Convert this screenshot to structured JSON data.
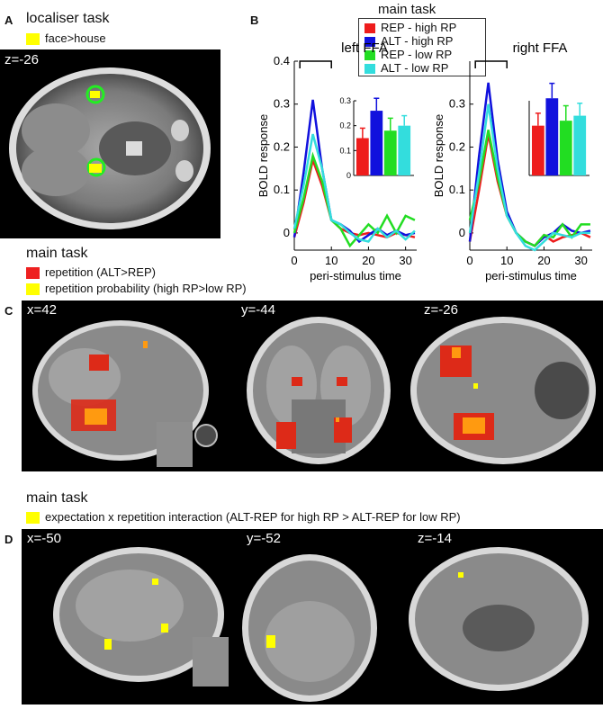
{
  "panelA": {
    "letter": "A",
    "title": "localiser task",
    "legend": [
      {
        "label": "face>house",
        "color": "#ffff00"
      }
    ],
    "coord": "z=-26"
  },
  "panelB": {
    "letter": "B",
    "legend_title": "main task",
    "legend": [
      {
        "label": "REP - high RP",
        "color": "#ee1c1c"
      },
      {
        "label": "ALT - high RP",
        "color": "#1111dd"
      },
      {
        "label": "REP - low RP",
        "color": "#22dd22"
      },
      {
        "label": "ALT - low RP",
        "color": "#33dddd"
      }
    ],
    "ylabel": "BOLD response",
    "xlabel": "peri-stimulus time"
  },
  "panelC": {
    "letter": "C",
    "title": "main task",
    "legend": [
      {
        "label": "repetition (ALT>REP)",
        "color": "#ee2020"
      },
      {
        "label": "repetition probability (high RP>low RP)",
        "color": "#ffff00"
      }
    ],
    "coords": [
      "x=42",
      "y=-44",
      "z=-26"
    ]
  },
  "panelD": {
    "letter": "D",
    "title": "main task",
    "legend": [
      {
        "label": "expectation x repetition interaction  (ALT-REP for high RP > ALT-REP for low RP)",
        "color": "#ffff00"
      }
    ],
    "coords": [
      "x=-50",
      "y=-52",
      "z=-14"
    ]
  },
  "chart_data": [
    {
      "type": "line",
      "title": "left FFA",
      "xlabel": "peri-stimulus time",
      "ylabel": "BOLD response",
      "x": [
        0,
        2.5,
        5,
        7.5,
        10,
        12.5,
        15,
        17.5,
        20,
        22.5,
        25,
        27.5,
        30,
        32.5
      ],
      "xlim": [
        0,
        33
      ],
      "ylim": [
        -0.04,
        0.4
      ],
      "xticks": [
        0,
        10,
        20,
        30
      ],
      "yticks": [
        0,
        0.1,
        0.2,
        0.3,
        0.4
      ],
      "series": [
        {
          "name": "REP - high RP",
          "color": "#ee1c1c",
          "values": [
            -0.01,
            0.07,
            0.17,
            0.11,
            0.03,
            0.01,
            0.0,
            -0.005,
            0.0,
            -0.005,
            -0.01,
            0.0,
            -0.005,
            -0.01
          ]
        },
        {
          "name": "ALT - high RP",
          "color": "#1111dd",
          "values": [
            -0.01,
            0.14,
            0.31,
            0.15,
            0.03,
            0.02,
            0.005,
            -0.02,
            -0.005,
            0.01,
            -0.005,
            0.005,
            -0.005,
            0.0
          ]
        },
        {
          "name": "REP - low RP",
          "color": "#22dd22",
          "values": [
            0.0,
            0.08,
            0.18,
            0.12,
            0.03,
            0.01,
            -0.03,
            -0.005,
            0.02,
            0.0,
            0.04,
            0.0,
            0.04,
            0.03
          ]
        },
        {
          "name": "ALT - low RP",
          "color": "#33dddd",
          "values": [
            0.01,
            0.11,
            0.23,
            0.15,
            0.03,
            0.02,
            0.0,
            -0.015,
            -0.02,
            0.01,
            -0.01,
            0.005,
            -0.015,
            0.005
          ]
        }
      ],
      "inset": {
        "type": "bar",
        "ylim": [
          0,
          0.3
        ],
        "yticks": [
          0,
          0.1,
          0.2,
          0.3
        ],
        "values": [
          0.15,
          0.26,
          0.18,
          0.2
        ],
        "errors": [
          0.04,
          0.05,
          0.05,
          0.04
        ],
        "colors": [
          "#ee1c1c",
          "#1111dd",
          "#22dd22",
          "#33dddd"
        ]
      }
    },
    {
      "type": "line",
      "title": "right FFA",
      "xlabel": "peri-stimulus time",
      "ylabel": "BOLD response",
      "x": [
        0,
        2.5,
        5,
        7.5,
        10,
        12.5,
        15,
        17.5,
        20,
        22.5,
        25,
        27.5,
        30,
        32.5
      ],
      "xlim": [
        0,
        33
      ],
      "ylim": [
        -0.04,
        0.4
      ],
      "xticks": [
        0,
        10,
        20,
        30
      ],
      "yticks": [
        0,
        0.1,
        0.2,
        0.3
      ],
      "series": [
        {
          "name": "REP - high RP",
          "color": "#ee1c1c",
          "values": [
            -0.02,
            0.1,
            0.23,
            0.12,
            0.04,
            0.0,
            -0.02,
            -0.03,
            -0.005,
            -0.02,
            -0.01,
            -0.005,
            0.0,
            -0.01
          ]
        },
        {
          "name": "ALT - high RP",
          "color": "#1111dd",
          "values": [
            -0.02,
            0.18,
            0.35,
            0.17,
            0.05,
            0.0,
            -0.02,
            -0.03,
            -0.01,
            0.0,
            0.02,
            0.005,
            0.0,
            0.005
          ]
        },
        {
          "name": "REP - low RP",
          "color": "#22dd22",
          "values": [
            0.03,
            0.12,
            0.24,
            0.13,
            0.04,
            0.0,
            -0.02,
            -0.03,
            -0.005,
            -0.01,
            0.02,
            -0.01,
            0.02,
            0.02
          ]
        },
        {
          "name": "ALT - low RP",
          "color": "#33dddd",
          "values": [
            0.0,
            0.14,
            0.3,
            0.15,
            0.04,
            0.0,
            -0.03,
            -0.04,
            -0.02,
            0.0,
            -0.005,
            -0.01,
            0.0,
            0.0
          ]
        }
      ],
      "inset": {
        "type": "bar",
        "ylim": [
          0,
          0.3
        ],
        "yticks": [],
        "values": [
          0.2,
          0.31,
          0.22,
          0.24
        ],
        "errors": [
          0.05,
          0.06,
          0.06,
          0.05
        ],
        "colors": [
          "#ee1c1c",
          "#1111dd",
          "#22dd22",
          "#33dddd"
        ]
      }
    }
  ]
}
